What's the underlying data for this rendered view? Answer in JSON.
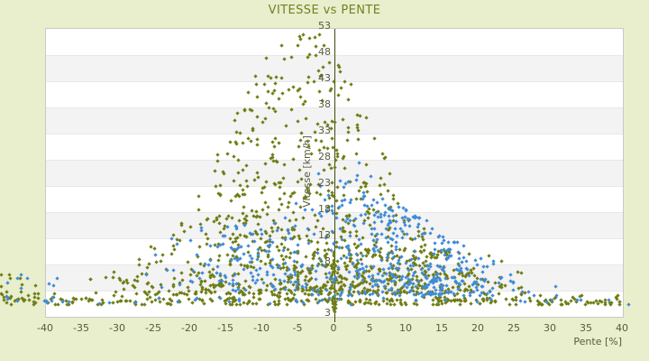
{
  "chart_data": {
    "type": "scatter",
    "title": "VITESSE vs PENTE",
    "xlabel": "Pente [%]",
    "ylabel": "Vitesse [km/h]",
    "xlim": [
      -40,
      40
    ],
    "ylim": [
      -2,
      53
    ],
    "x_ticks": [
      -40,
      -35,
      -30,
      -25,
      -20,
      -15,
      -10,
      -5,
      0,
      5,
      10,
      15,
      20,
      25,
      30,
      35,
      40
    ],
    "y_ticks": [
      53,
      48,
      43,
      38,
      33,
      28,
      23,
      18,
      13,
      8
    ],
    "y_min_label": "3",
    "grid": "horizontal-bands",
    "legend": "none",
    "zero_axis_line_x": 0,
    "band_count": 11,
    "seed": 11,
    "colors": {
      "background": "#e9eecd",
      "band_light": "#ffffff",
      "band_dark": "#f3f3f3",
      "plot_border": "#c9c9c9",
      "gridline": "#e8e8e8",
      "axis_line": "#41490f",
      "title_text": "#72801f",
      "tick_text": "#555b3c"
    },
    "series": [
      {
        "name": "olive",
        "color": "#6f7d15",
        "marker": "diamond",
        "components": [
          {
            "kind": "cloud",
            "count": 850,
            "p": {
              "dist": "gauss",
              "mu": -5,
              "sigma": 11,
              "min": -41,
              "max": 26
            },
            "v": {
              "envelope": {
                "base": 4,
                "peak": 49,
                "center": -4,
                "sigmaLeft": 11,
                "sigmaRight": 9.5
              },
              "floor": 2.2,
              "power": 1.7
            }
          },
          {
            "kind": "cloud",
            "count": 190,
            "p": {
              "dist": "gauss",
              "mu": 8,
              "sigma": 8,
              "min": -5,
              "max": 38
            },
            "v": {
              "envelope": {
                "base": 4,
                "peak": 7,
                "center": 5,
                "sigmaLeft": 25,
                "sigmaRight": 25
              },
              "floor": 2.5,
              "power": 1.2
            }
          },
          {
            "kind": "band",
            "count": 300,
            "p": {
              "dist": "uniform",
              "min": -46,
              "max": 40
            },
            "v": {
              "dist": "gauss",
              "mu": 0.9,
              "sigma": 0.55,
              "min": 0.2,
              "max": 2.6
            }
          },
          {
            "kind": "column",
            "count": 28,
            "p": {
              "dist": "gauss",
              "mu": 0,
              "sigma": 0.18,
              "min": -0.6,
              "max": 0.6
            },
            "v": {
              "dist": "uniform",
              "min": -1.2,
              "max": 9
            }
          },
          {
            "kind": "band",
            "count": 12,
            "p": {
              "dist": "uniform",
              "min": -47,
              "max": -40
            },
            "v": {
              "dist": "uniform",
              "min": 1.5,
              "max": 6.5
            }
          }
        ]
      },
      {
        "name": "blue",
        "color": "#3f8bd8",
        "marker": "diamond",
        "components": [
          {
            "kind": "cloud",
            "count": 420,
            "p": {
              "dist": "gauss",
              "mu": 9,
              "sigma": 7.5,
              "min": -14,
              "max": 34
            },
            "v": {
              "envelope": {
                "base": 2.5,
                "peak": 20,
                "center": 2,
                "sigmaLeft": 13,
                "sigmaRight": 13
              },
              "floor": 2,
              "power": 1.5
            }
          },
          {
            "kind": "cloud",
            "count": 110,
            "p": {
              "dist": "gauss",
              "mu": -12,
              "sigma": 5.5,
              "min": -27,
              "max": -1
            },
            "v": {
              "envelope": {
                "base": 3,
                "peak": 13,
                "center": -10,
                "sigmaLeft": 20,
                "sigmaRight": 20
              },
              "floor": 3,
              "power": 1.4
            }
          },
          {
            "kind": "band",
            "count": 45,
            "p": {
              "dist": "uniform",
              "min": -46.5,
              "max": 41
            },
            "v": {
              "dist": "gauss",
              "mu": 0.9,
              "sigma": 0.5,
              "min": 0.2,
              "max": 2.4
            }
          },
          {
            "kind": "band",
            "count": 8,
            "p": {
              "dist": "uniform",
              "min": -46,
              "max": -38
            },
            "v": {
              "dist": "uniform",
              "min": 2,
              "max": 6
            }
          },
          {
            "kind": "band",
            "count": 12,
            "p": {
              "dist": "gauss",
              "mu": 2,
              "sigma": 3,
              "min": -4,
              "max": 8
            },
            "v": {
              "dist": "uniform",
              "min": 18,
              "max": 28
            }
          }
        ]
      }
    ]
  }
}
